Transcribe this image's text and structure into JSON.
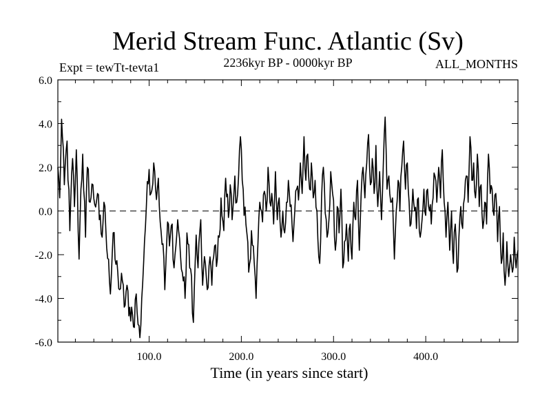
{
  "chart_data": {
    "type": "line",
    "title": "Merid Stream Func. Atlantic (Sv)",
    "experiment": "Expt = tewTt-tevta1",
    "period": "2236kyr BP - 0000kyr BP",
    "months": "ALL_MONTHS",
    "xlabel": "Time (in years since start)",
    "ylabel": "",
    "xlim": [
      1,
      500
    ],
    "ylim": [
      -6.0,
      6.0
    ],
    "xticks": [
      100,
      200,
      300,
      400
    ],
    "xtick_labels": [
      "100.0",
      "200.0",
      "300.0",
      "400.0"
    ],
    "yticks": [
      -6,
      -4,
      -2,
      0,
      2,
      4,
      6
    ],
    "ytick_labels": [
      "-6.0",
      "-4.0",
      "-2.0",
      "0.0",
      "2.0",
      "4.0",
      "6.0"
    ],
    "reference_line": 0.0,
    "anchors": [
      [
        1,
        2.0
      ],
      [
        3,
        0.6
      ],
      [
        5,
        4.2
      ],
      [
        8,
        1.2
      ],
      [
        11,
        3.2
      ],
      [
        14,
        -0.9
      ],
      [
        17,
        2.4
      ],
      [
        19,
        0.2
      ],
      [
        21,
        2.8
      ],
      [
        24,
        -2.2
      ],
      [
        26,
        1.0
      ],
      [
        28,
        2.6
      ],
      [
        31,
        -1.2
      ],
      [
        33,
        2.0
      ],
      [
        36,
        0.4
      ],
      [
        39,
        1.2
      ],
      [
        41,
        0.3
      ],
      [
        44,
        0.8
      ],
      [
        46,
        -0.4
      ],
      [
        49,
        -1.2
      ],
      [
        51,
        0.4
      ],
      [
        53,
        -0.8
      ],
      [
        56,
        -2.2
      ],
      [
        58,
        -3.8
      ],
      [
        61,
        -1.0
      ],
      [
        63,
        -2.2
      ],
      [
        66,
        -2.8
      ],
      [
        68,
        -3.6
      ],
      [
        71,
        -3.2
      ],
      [
        73,
        -4.4
      ],
      [
        76,
        -3.4
      ],
      [
        78,
        -4.8
      ],
      [
        81,
        -4.4
      ],
      [
        83,
        -5.3
      ],
      [
        86,
        -3.8
      ],
      [
        88,
        -5.2
      ],
      [
        90,
        -5.8
      ],
      [
        92,
        -4.0
      ],
      [
        95,
        -1.4
      ],
      [
        97,
        0.2
      ],
      [
        100,
        1.9
      ],
      [
        102,
        0.8
      ],
      [
        105,
        2.2
      ],
      [
        107,
        1.0
      ],
      [
        110,
        1.5
      ],
      [
        112,
        -0.5
      ],
      [
        115,
        -1.5
      ],
      [
        117,
        -3.6
      ],
      [
        120,
        -0.5
      ],
      [
        122,
        -1.6
      ],
      [
        125,
        -0.6
      ],
      [
        127,
        -2.6
      ],
      [
        129,
        -1.6
      ],
      [
        131,
        -0.4
      ],
      [
        134,
        -2.0
      ],
      [
        137,
        -3.2
      ],
      [
        139,
        -4.0
      ],
      [
        141,
        -1.0
      ],
      [
        144,
        -2.6
      ],
      [
        146,
        -3.0
      ],
      [
        148,
        -5.1
      ],
      [
        151,
        -1.1
      ],
      [
        153,
        -2.6
      ],
      [
        156,
        -0.4
      ],
      [
        158,
        -3.4
      ],
      [
        161,
        -2.4
      ],
      [
        163,
        -3.6
      ],
      [
        166,
        -2.1
      ],
      [
        168,
        -3.4
      ],
      [
        171,
        -1.6
      ],
      [
        174,
        -2.2
      ],
      [
        176,
        -1.2
      ],
      [
        178,
        0.6
      ],
      [
        181,
        -0.9
      ],
      [
        183,
        1.5
      ],
      [
        186,
        -0.3
      ],
      [
        188,
        1.2
      ],
      [
        190,
        -0.4
      ],
      [
        193,
        1.6
      ],
      [
        195,
        0.4
      ],
      [
        197,
        1.6
      ],
      [
        199,
        3.4
      ],
      [
        201,
        1.4
      ],
      [
        203,
        -0.2
      ],
      [
        206,
        -1.0
      ],
      [
        208,
        -2.8
      ],
      [
        211,
        -0.9
      ],
      [
        213,
        -1.6
      ],
      [
        216,
        -4.0
      ],
      [
        218,
        -1.5
      ],
      [
        220,
        0.4
      ],
      [
        223,
        -0.5
      ],
      [
        225,
        0.9
      ],
      [
        227,
        0.0
      ],
      [
        229,
        2.0
      ],
      [
        231,
        0.4
      ],
      [
        233,
        0.8
      ],
      [
        235,
        -0.6
      ],
      [
        237,
        1.8
      ],
      [
        239,
        -0.4
      ],
      [
        241,
        0.6
      ],
      [
        243,
        -1.2
      ],
      [
        245,
        0.0
      ],
      [
        247,
        -1.0
      ],
      [
        249,
        0.4
      ],
      [
        251,
        1.4
      ],
      [
        253,
        0.2
      ],
      [
        256,
        -1.4
      ],
      [
        258,
        0.0
      ],
      [
        260,
        1.0
      ],
      [
        262,
        0.5
      ],
      [
        264,
        2.2
      ],
      [
        266,
        0.8
      ],
      [
        268,
        3.4
      ],
      [
        270,
        1.4
      ],
      [
        272,
        2.6
      ],
      [
        274,
        1.0
      ],
      [
        276,
        2.2
      ],
      [
        278,
        0.6
      ],
      [
        280,
        1.4
      ],
      [
        282,
        0.0
      ],
      [
        285,
        -2.4
      ],
      [
        287,
        0.6
      ],
      [
        289,
        2.0
      ],
      [
        291,
        -0.1
      ],
      [
        293,
        -1.2
      ],
      [
        295,
        -0.4
      ],
      [
        297,
        1.8
      ],
      [
        299,
        0.8
      ],
      [
        302,
        -1.8
      ],
      [
        304,
        0.2
      ],
      [
        306,
        -1.0
      ],
      [
        308,
        1.0
      ],
      [
        310,
        -2.6
      ],
      [
        312,
        -1.4
      ],
      [
        314,
        -0.6
      ],
      [
        316,
        -2.3
      ],
      [
        318,
        -0.6
      ],
      [
        320,
        -2.2
      ],
      [
        322,
        0.4
      ],
      [
        324,
        -0.4
      ],
      [
        326,
        1.4
      ],
      [
        328,
        -1.8
      ],
      [
        330,
        0.8
      ],
      [
        332,
        2.0
      ],
      [
        334,
        0.6
      ],
      [
        336,
        2.2
      ],
      [
        338,
        3.5
      ],
      [
        340,
        1.2
      ],
      [
        342,
        2.4
      ],
      [
        344,
        0.8
      ],
      [
        346,
        3.0
      ],
      [
        348,
        0.2
      ],
      [
        350,
        1.8
      ],
      [
        352,
        -0.4
      ],
      [
        354,
        2.2
      ],
      [
        356,
        4.3
      ],
      [
        358,
        1.0
      ],
      [
        360,
        1.6
      ],
      [
        362,
        0.4
      ],
      [
        364,
        0.6
      ],
      [
        366,
        -2.2
      ],
      [
        368,
        0.0
      ],
      [
        370,
        1.4
      ],
      [
        372,
        0.0
      ],
      [
        374,
        2.0
      ],
      [
        376,
        3.2
      ],
      [
        378,
        1.0
      ],
      [
        380,
        2.2
      ],
      [
        382,
        0.4
      ],
      [
        384,
        -0.6
      ],
      [
        386,
        1.0
      ],
      [
        388,
        0.0
      ],
      [
        390,
        -0.8
      ],
      [
        392,
        0.6
      ],
      [
        394,
        -1.2
      ],
      [
        396,
        -0.4
      ],
      [
        398,
        1.0
      ],
      [
        400,
        -0.2
      ],
      [
        402,
        1.0
      ],
      [
        404,
        0.0
      ],
      [
        406,
        -0.6
      ],
      [
        408,
        0.6
      ],
      [
        410,
        1.6
      ],
      [
        412,
        0.4
      ],
      [
        414,
        2.0
      ],
      [
        416,
        0.6
      ],
      [
        418,
        2.8
      ],
      [
        420,
        0.4
      ],
      [
        422,
        -1.2
      ],
      [
        424,
        0.4
      ],
      [
        426,
        -1.8
      ],
      [
        428,
        0.0
      ],
      [
        430,
        -2.4
      ],
      [
        432,
        -0.6
      ],
      [
        434,
        -2.8
      ],
      [
        436,
        -1.2
      ],
      [
        438,
        0.2
      ],
      [
        440,
        -0.8
      ],
      [
        442,
        0.6
      ],
      [
        444,
        1.6
      ],
      [
        446,
        0.4
      ],
      [
        448,
        3.4
      ],
      [
        450,
        1.4
      ],
      [
        452,
        2.2
      ],
      [
        454,
        0.6
      ],
      [
        456,
        2.6
      ],
      [
        458,
        0.2
      ],
      [
        460,
        1.2
      ],
      [
        462,
        -0.8
      ],
      [
        464,
        0.4
      ],
      [
        466,
        -0.6
      ],
      [
        468,
        2.6
      ],
      [
        470,
        0.8
      ],
      [
        472,
        1.0
      ],
      [
        474,
        -0.2
      ],
      [
        476,
        0.8
      ],
      [
        478,
        -1.4
      ],
      [
        480,
        0.2
      ],
      [
        482,
        -2.4
      ],
      [
        484,
        -1.0
      ],
      [
        486,
        -3.4
      ],
      [
        488,
        -1.4
      ],
      [
        490,
        -3.0
      ],
      [
        492,
        -2.0
      ],
      [
        494,
        -2.8
      ],
      [
        496,
        -1.2
      ],
      [
        498,
        -2.6
      ],
      [
        500,
        -1.8
      ]
    ]
  }
}
